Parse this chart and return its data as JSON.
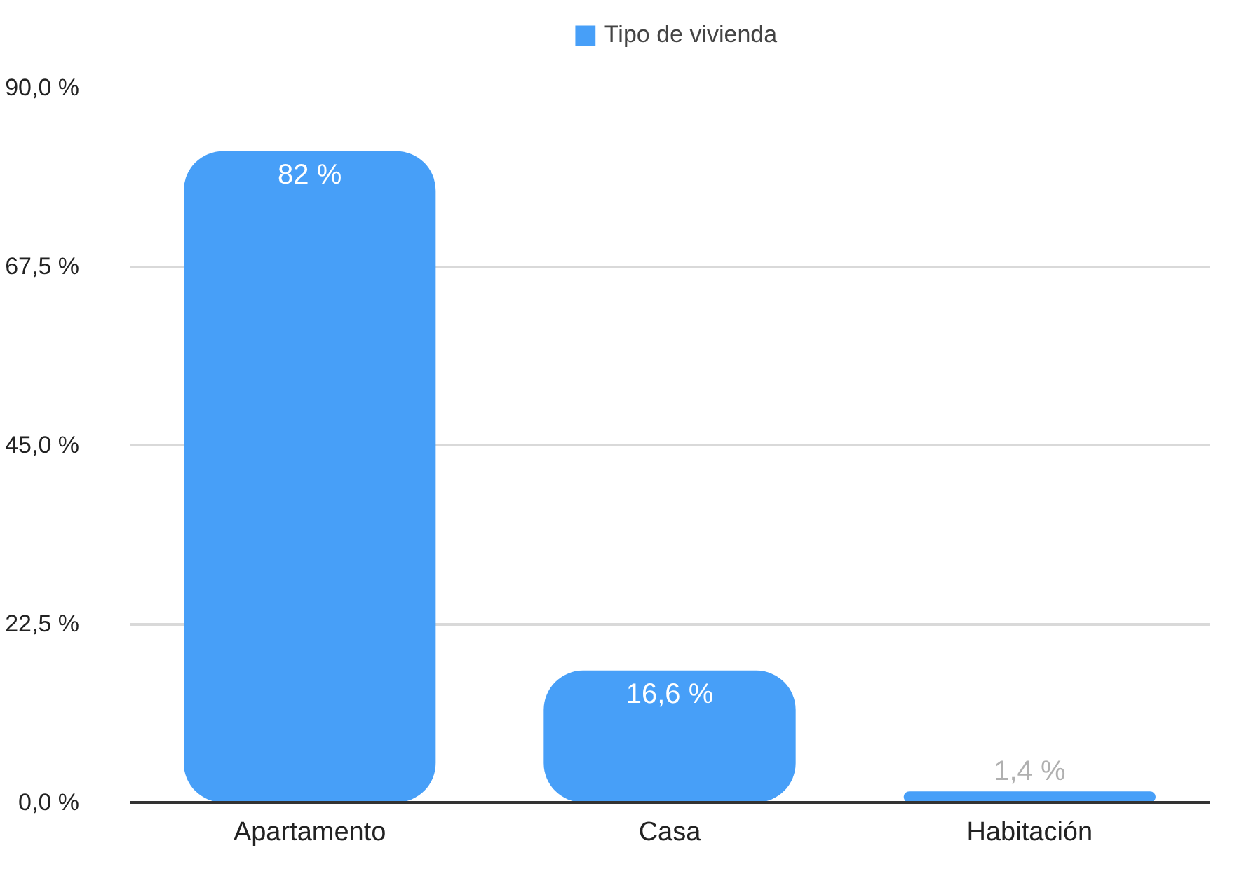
{
  "chart_data": {
    "type": "bar",
    "categories": [
      "Apartamento",
      "Casa",
      "Habitación"
    ],
    "series": [
      {
        "name": "Tipo de vivienda",
        "color": "#479ff8",
        "values": [
          82,
          16.6,
          1.4
        ],
        "value_labels": [
          "82 %",
          "16,6 %",
          "1,4 %"
        ]
      }
    ],
    "ylim": [
      0,
      90
    ],
    "yticks": [
      {
        "value": 0,
        "label": "0,0 %"
      },
      {
        "value": 22.5,
        "label": "22,5 %"
      },
      {
        "value": 45,
        "label": "45,0 %"
      },
      {
        "value": 67.5,
        "label": "67,5 %"
      },
      {
        "value": 90,
        "label": "90,0 %"
      }
    ],
    "grid": "y",
    "legend": "top"
  }
}
